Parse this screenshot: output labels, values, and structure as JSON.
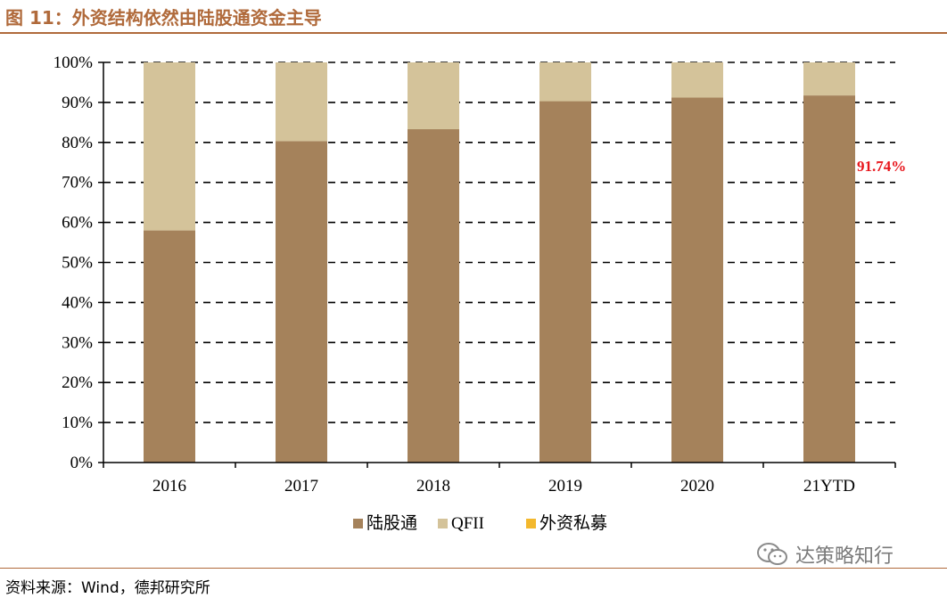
{
  "title": "图 11：外资结构依然由陆股通资金主导",
  "source": "资料来源：Wind，德邦研究所",
  "watermark": "达策略知行",
  "colors": {
    "accent": "#b06a3b",
    "lugutong": "#a5825b",
    "qfii": "#d4c39a",
    "private": "#f3b82d",
    "annotation": "#e8161c"
  },
  "chart_data": {
    "type": "bar",
    "stacked": true,
    "categories": [
      "2016",
      "2017",
      "2018",
      "2019",
      "2020",
      "21YTD"
    ],
    "series": [
      {
        "name": "陆股通",
        "values": [
          58,
          80.3,
          83.3,
          90.3,
          91.2,
          91.74
        ],
        "color": "#a5825b"
      },
      {
        "name": "QFII",
        "values": [
          42,
          19.7,
          16.7,
          9.7,
          8.8,
          8.26
        ],
        "color": "#d4c39a"
      },
      {
        "name": "外资私募",
        "values": [
          0,
          0,
          0,
          0,
          0,
          0
        ],
        "color": "#f3b82d"
      }
    ],
    "ylim": [
      0,
      100
    ],
    "yticks": [
      "0%",
      "10%",
      "20%",
      "30%",
      "40%",
      "50%",
      "60%",
      "70%",
      "80%",
      "90%",
      "100%"
    ],
    "grid": true,
    "legend": "bottom",
    "annotation": {
      "text": "91.74%",
      "category": "21YTD"
    }
  }
}
